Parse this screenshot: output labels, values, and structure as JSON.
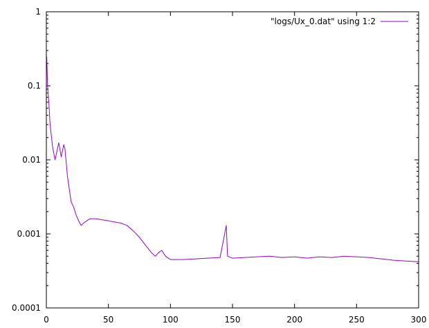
{
  "chart_data": {
    "type": "line",
    "title": "",
    "xlabel": "",
    "ylabel": "",
    "xlim": [
      0,
      300
    ],
    "ylim": [
      0.0001,
      1
    ],
    "yscale": "log",
    "grid": false,
    "legend_position": "top-right",
    "x_ticks": [
      "0",
      "50",
      "100",
      "150",
      "200",
      "250",
      "300"
    ],
    "y_ticks": [
      "0.0001",
      "0.001",
      "0.01",
      "0.1",
      "1"
    ],
    "series": [
      {
        "name": "\"logs/Ux_0.dat\" using 1:2",
        "color": "#9400d3",
        "x": [
          0.3,
          1,
          2,
          3,
          5,
          7,
          10,
          12,
          14,
          15,
          17,
          19,
          20,
          22,
          24,
          26,
          28,
          30,
          35,
          40,
          50,
          60,
          65,
          70,
          75,
          80,
          85,
          88,
          90,
          93,
          96,
          100,
          110,
          120,
          130,
          140,
          145,
          146,
          150,
          160,
          170,
          180,
          190,
          200,
          210,
          220,
          230,
          240,
          250,
          260,
          270,
          280,
          290,
          300
        ],
        "values": [
          0.25,
          0.1,
          0.06,
          0.03,
          0.015,
          0.01,
          0.017,
          0.011,
          0.016,
          0.014,
          0.006,
          0.0035,
          0.0027,
          0.0023,
          0.0018,
          0.0015,
          0.0013,
          0.0014,
          0.0016,
          0.0016,
          0.0015,
          0.0014,
          0.0013,
          0.0011,
          0.0009,
          0.0007,
          0.00055,
          0.0005,
          0.00055,
          0.0006,
          0.0005,
          0.00045,
          0.00045,
          0.00046,
          0.00047,
          0.00048,
          0.0013,
          0.0005,
          0.00047,
          0.00048,
          0.00049,
          0.0005,
          0.00048,
          0.00049,
          0.00047,
          0.00049,
          0.00048,
          0.0005,
          0.00049,
          0.00048,
          0.00046,
          0.00044,
          0.00043,
          0.00042
        ]
      }
    ]
  }
}
